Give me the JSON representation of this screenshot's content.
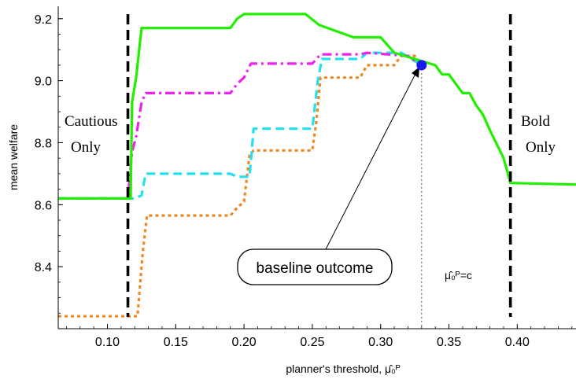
{
  "chart_data": {
    "type": "line",
    "xlabel": "planner's threshold, μ̂₀ᴾ",
    "ylabel": "mean welfare",
    "xlim": [
      0.064,
      0.443
    ],
    "ylim": [
      8.2,
      9.24
    ],
    "xticks": [
      0.1,
      0.15,
      0.2,
      0.25,
      0.3,
      0.35,
      0.4
    ],
    "xtick_labels": [
      "0.10",
      "0.15",
      "0.20",
      "0.25",
      "0.30",
      "0.35",
      "0.40"
    ],
    "yticks": [
      8.4,
      8.6,
      8.8,
      9.0,
      9.2
    ],
    "ytick_labels": [
      "8.4",
      "8.6",
      "8.8",
      "9.0",
      "9.2"
    ],
    "grid": false,
    "series": [
      {
        "color": "#22ee00",
        "dash": "solid",
        "points": [
          [
            0.064,
            8.62
          ],
          [
            0.117,
            8.62
          ],
          [
            0.118,
            8.93
          ],
          [
            0.121,
            9.01
          ],
          [
            0.125,
            9.17
          ],
          [
            0.19,
            9.17
          ],
          [
            0.195,
            9.2
          ],
          [
            0.2,
            9.215
          ],
          [
            0.245,
            9.215
          ],
          [
            0.255,
            9.18
          ],
          [
            0.28,
            9.14
          ],
          [
            0.3,
            9.14
          ],
          [
            0.31,
            9.09
          ],
          [
            0.34,
            9.05
          ],
          [
            0.345,
            9.02
          ],
          [
            0.35,
            9.02
          ],
          [
            0.36,
            8.96
          ],
          [
            0.365,
            8.96
          ],
          [
            0.37,
            8.92
          ],
          [
            0.375,
            8.89
          ],
          [
            0.38,
            8.84
          ],
          [
            0.39,
            8.75
          ],
          [
            0.395,
            8.67
          ],
          [
            0.443,
            8.665
          ]
        ]
      },
      {
        "color": "#ee22ee",
        "dash": "dashdot",
        "points": [
          [
            0.064,
            8.62
          ],
          [
            0.115,
            8.62
          ],
          [
            0.118,
            8.77
          ],
          [
            0.121,
            8.82
          ],
          [
            0.125,
            8.93
          ],
          [
            0.128,
            8.96
          ],
          [
            0.19,
            8.96
          ],
          [
            0.195,
            8.99
          ],
          [
            0.2,
            9.01
          ],
          [
            0.205,
            9.055
          ],
          [
            0.25,
            9.055
          ],
          [
            0.256,
            9.085
          ],
          [
            0.285,
            9.085
          ],
          [
            0.29,
            9.09
          ],
          [
            0.32,
            9.08
          ],
          [
            0.33,
            9.05
          ]
        ]
      },
      {
        "color": "#22e0ee",
        "dash": "dashed",
        "points": [
          [
            0.064,
            8.62
          ],
          [
            0.12,
            8.62
          ],
          [
            0.125,
            8.63
          ],
          [
            0.128,
            8.7
          ],
          [
            0.19,
            8.7
          ],
          [
            0.195,
            8.69
          ],
          [
            0.204,
            8.69
          ],
          [
            0.207,
            8.845
          ],
          [
            0.25,
            8.845
          ],
          [
            0.254,
            9.0
          ],
          [
            0.257,
            9.07
          ],
          [
            0.285,
            9.07
          ],
          [
            0.29,
            9.09
          ],
          [
            0.315,
            9.09
          ],
          [
            0.33,
            9.05
          ]
        ]
      },
      {
        "color": "#ee8822",
        "dash": "dotted",
        "points": [
          [
            0.064,
            8.24
          ],
          [
            0.122,
            8.24
          ],
          [
            0.126,
            8.45
          ],
          [
            0.129,
            8.565
          ],
          [
            0.19,
            8.565
          ],
          [
            0.195,
            8.59
          ],
          [
            0.2,
            8.61
          ],
          [
            0.204,
            8.76
          ],
          [
            0.207,
            8.775
          ],
          [
            0.25,
            8.775
          ],
          [
            0.253,
            8.87
          ],
          [
            0.256,
            9.01
          ],
          [
            0.285,
            9.01
          ],
          [
            0.29,
            9.05
          ],
          [
            0.31,
            9.05
          ],
          [
            0.315,
            9.08
          ],
          [
            0.325,
            9.08
          ],
          [
            0.33,
            9.05
          ]
        ]
      }
    ],
    "vlines": [
      {
        "x": 0.115,
        "style": "dashed",
        "color": "#000000"
      },
      {
        "x": 0.395,
        "style": "dashed",
        "color": "#000000"
      },
      {
        "x": 0.33,
        "style": "dotted",
        "color": "#555555"
      }
    ],
    "baseline_point": {
      "x": 0.33,
      "y": 9.05,
      "color": "#1a1aee"
    },
    "annotations": {
      "cautious_line1": "Cautious",
      "cautious_line2": "Only",
      "bold_line1": "Bold",
      "bold_line2": "Only",
      "callout": "baseline outcome",
      "threshold_label": "μ̂₀ᴾ=c"
    }
  }
}
